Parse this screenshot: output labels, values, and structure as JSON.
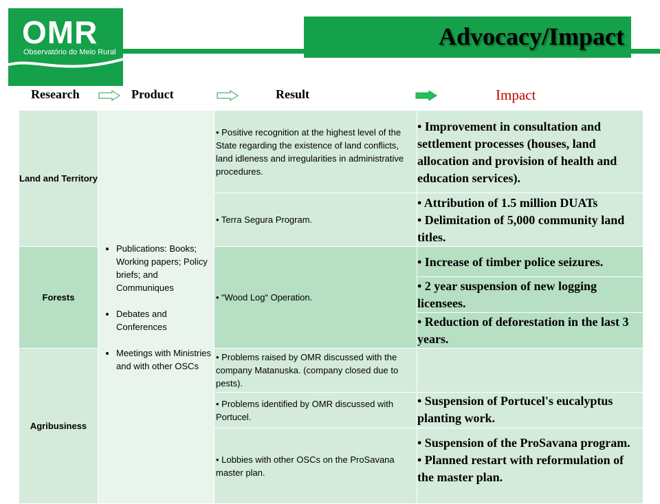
{
  "logo": {
    "mark": "OMR",
    "subtitle": "Observatório do Meio Rural"
  },
  "title": "Advocacy/Impact",
  "headers": {
    "research": "Research",
    "product": "Product",
    "result": "Result",
    "impact": "Impact"
  },
  "categories": {
    "land": "Land and Territory",
    "forests": "Forests",
    "agri": "Agribusiness"
  },
  "products": [
    "Publications: Books; Working papers; Policy briefs; and Communiques",
    "Debates and Conferences",
    "Meetings with Ministries and with other OSCs"
  ],
  "results": {
    "r1": "• Positive recognition at the highest level of the State regarding the existence of land conflicts, land idleness and irregularities in administrative procedures.",
    "r2": "• Terra Segura Program.",
    "r3": "• “Wood Log“ Operation.",
    "r4": "• Problems raised by OMR discussed with the company Matanuska. (company closed due to pests).",
    "r5": "• Problems identified by OMR discussed with Portucel.",
    "r6": "• Lobbies with other OSCs on the ProSavana master plan."
  },
  "impacts": {
    "i1": "• Improvement in consultation and settlement processes (houses, land allocation and provision of health and education services).",
    "i2a": "• Attribution of 1.5 million DUATs",
    "i2b": "• Delimitation of 5,000 community land titles.",
    "i3": "• Increase of timber police seizures.",
    "i4": "• 2 year suspension of new logging licensees.",
    "i5": "• Reduction of deforestation in the last 3 years.",
    "i6": "",
    "i7": "• Suspension of Portucel's eucalyptus planting work.",
    "i8a": "• Suspension of the ProSavana program.",
    "i8b": "• Planned restart with reformulation of the master plan."
  }
}
